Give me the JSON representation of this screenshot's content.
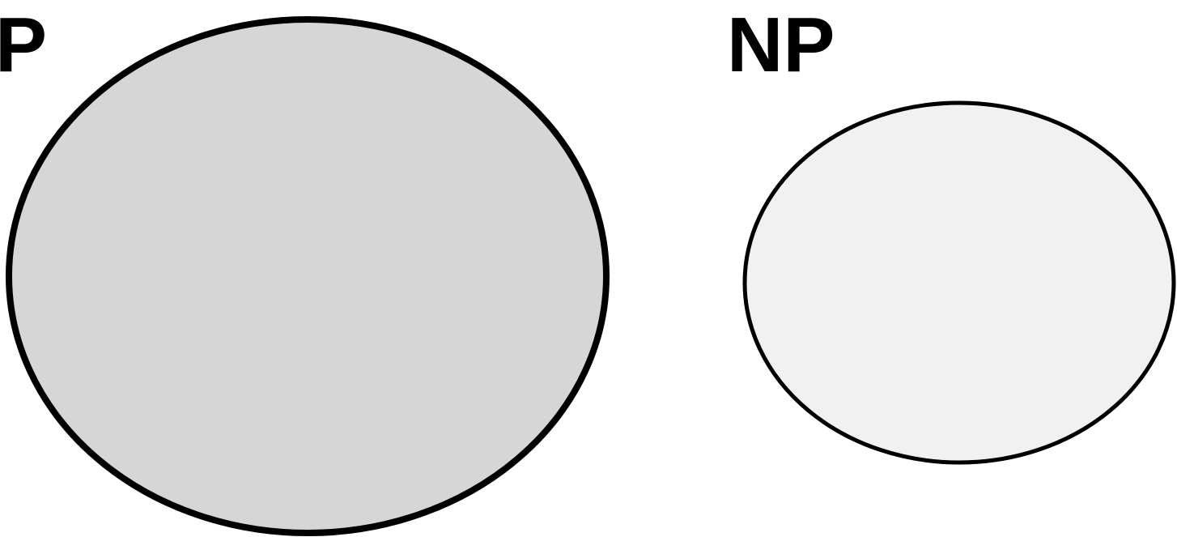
{
  "sets": [
    {
      "label": "P",
      "fill": "#d6d6d6",
      "stroke": "#000000"
    },
    {
      "label": "NP",
      "fill": "#f1f1f1",
      "stroke": "#000000"
    }
  ]
}
